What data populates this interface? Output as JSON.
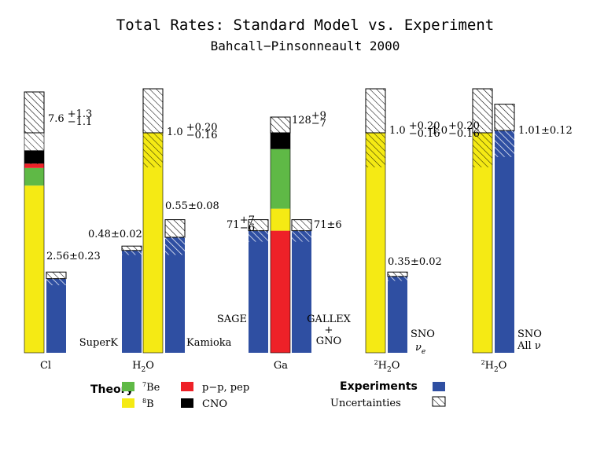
{
  "chart_data": {
    "type": "bar",
    "title": "Total Rates: Standard Model vs. Experiment",
    "subtitle": "Bahcall−Pinsonneault 2000",
    "colors": {
      "7Be": "#5fb946",
      "8B": "#f5ea14",
      "pp_pep": "#ee2128",
      "CNO": "#000000",
      "experiment": "#2f4fa2",
      "hatch": "#000000"
    },
    "legend": {
      "theory_label": "Theory",
      "experiments_label": "Experiments",
      "uncertainties_label": "Uncertainties",
      "items": [
        {
          "key": "7Be",
          "sup": "7",
          "base": "Be"
        },
        {
          "key": "8B",
          "sup": "8",
          "base": "B"
        },
        {
          "key": "pp_pep",
          "text": "p−p, pep"
        },
        {
          "key": "CNO",
          "text": "CNO"
        }
      ]
    },
    "groups": [
      {
        "axis_label": {
          "base": "Cl"
        },
        "theory": {
          "total": 1.0,
          "segments": [
            {
              "source": "8B",
              "value": 0.76
            },
            {
              "source": "7Be",
              "value": 0.08
            },
            {
              "source": "pp_pep",
              "value": 0.02
            },
            {
              "source": "CNO",
              "value": 0.06
            }
          ],
          "value_label": {
            "main": "7.6",
            "sup": "+1.3",
            "sub": "−1.1"
          }
        },
        "experiment": {
          "value": 0.337,
          "uncertainty": 0.03,
          "name": "",
          "value_label": {
            "main": "2.56±0.23"
          }
        }
      },
      {
        "axis_label": {
          "base": "H",
          "sub": "2",
          "tail": "O"
        },
        "theory": {
          "total": 1.0,
          "segments": [
            {
              "source": "8B",
              "value": 1.0
            }
          ],
          "value_label": {
            "main": "1.0",
            "sup": "+0.20",
            "sub": "−0.16"
          }
        },
        "experiment": {
          "value": 0.465,
          "uncertainty": 0.02,
          "name": "SuperK",
          "value_label": {
            "main": "0.48±0.02"
          }
        },
        "experiment2": {
          "value": 0.525,
          "uncertainty": 0.08,
          "name": "Kamioka",
          "value_label": {
            "main": "0.55±0.08"
          }
        }
      },
      {
        "axis_label": {
          "base": "Ga"
        },
        "theory": {
          "total": 1.0,
          "segments": [
            {
              "source": "pp_pep",
              "value": 0.555
            },
            {
              "source": "8B",
              "value": 0.1
            },
            {
              "source": "7Be",
              "value": 0.271
            },
            {
              "source": "CNO",
              "value": 0.074
            }
          ],
          "value_label": {
            "main": "128",
            "sup": "+9",
            "sub": "−7"
          }
        },
        "experiment": {
          "value": 0.555,
          "uncertainty": 0.05,
          "name": "SAGE",
          "value_label": {
            "main": "71",
            "sup": "+7",
            "sub": "−6"
          }
        },
        "experiment2": {
          "value": 0.555,
          "uncertainty": 0.05,
          "name_lines": [
            "GALLEX",
            "+",
            "GNO"
          ],
          "value_label": {
            "main": "71±6"
          }
        }
      },
      {
        "axis_label": {
          "sup": "2",
          "base": "H",
          "sub": "2",
          "tail": "O"
        },
        "theory": {
          "total": 1.0,
          "segments": [
            {
              "source": "8B",
              "value": 1.0
            }
          ],
          "value_label": {
            "main": "1.0",
            "sup": "+0.20",
            "sub": "−0.16"
          }
        },
        "experiment": {
          "value": 0.347,
          "uncertainty": 0.02,
          "name": "SNO",
          "name2": "ν",
          "name2_sub": "e",
          "value_label": {
            "main": "0.35±0.02"
          }
        }
      },
      {
        "axis_label": {
          "sup": "2",
          "base": "H",
          "sub": "2",
          "tail": "O"
        },
        "theory": {
          "total": 1.0,
          "segments": [
            {
              "source": "8B",
              "value": 1.0
            }
          ],
          "value_label": {
            "main": "1.0",
            "sup": "+0.20",
            "sub": "−0.16"
          }
        },
        "experiment": {
          "value": 1.01,
          "uncertainty": 0.12,
          "name": "SNO",
          "name2": "All ν",
          "value_label": {
            "main": "1.01±0.12"
          }
        }
      }
    ],
    "ylim": [
      0,
      1.2
    ],
    "xlabel": "",
    "ylabel": ""
  }
}
